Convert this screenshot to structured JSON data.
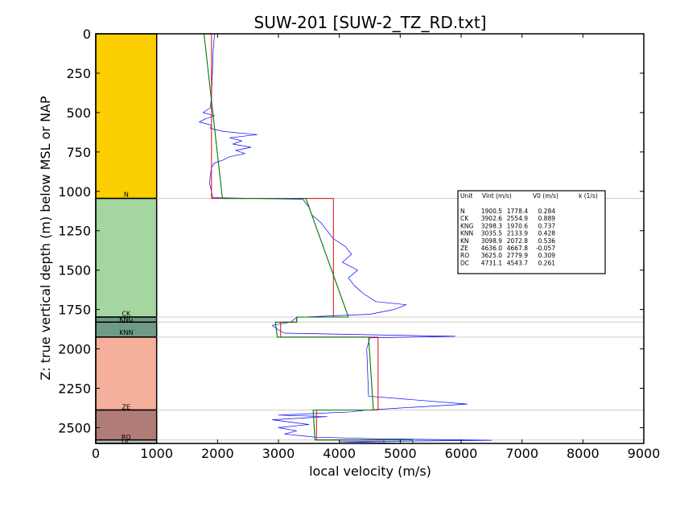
{
  "chart_data": {
    "type": "line",
    "title": "SUW-201 [SUW-2_TZ_RD.txt]",
    "xlabel": "local velocity (m/s)",
    "ylabel": "Z: true vertical depth (m) below MSL or NAP",
    "xlim": [
      0,
      9000
    ],
    "ylim": [
      2600,
      0
    ],
    "y_inverted": true,
    "xticks": [
      "0",
      "1000",
      "2000",
      "3000",
      "4000",
      "5000",
      "6000",
      "7000",
      "8000",
      "9000"
    ],
    "yticks": [
      "0",
      "250",
      "500",
      "750",
      "1000",
      "1250",
      "1500",
      "1750",
      "2000",
      "2250",
      "2500"
    ],
    "xtick_values": [
      0,
      1000,
      2000,
      3000,
      4000,
      5000,
      6000,
      7000,
      8000,
      9000
    ],
    "ytick_values": [
      0,
      250,
      500,
      750,
      1000,
      1250,
      1500,
      1750,
      2000,
      2250,
      2500
    ],
    "grid": false,
    "units": [
      {
        "name": "N",
        "top": 0,
        "base": 1045,
        "color": "#fccf03",
        "label_depth": 1020
      },
      {
        "name": "CK",
        "top": 1045,
        "base": 1798,
        "color": "#a6d6a0",
        "label_depth": 1775
      },
      {
        "name": "KNG",
        "top": 1798,
        "base": 1830,
        "color": "#6f9a85",
        "label_depth": 1812
      },
      {
        "name": "KNN",
        "top": 1830,
        "base": 1925,
        "color": "#6f9a85",
        "label_depth": 1895
      },
      {
        "name": "ZE",
        "top": 1925,
        "base": 2388,
        "color": "#f4b09a",
        "label_depth": 2367
      },
      {
        "name": "RO",
        "top": 2388,
        "base": 2578,
        "color": "#b07c78",
        "label_depth": 2560
      },
      {
        "name": "DC",
        "top": 2578,
        "base": 2600,
        "color": "#bbbbbb",
        "label_depth": 2590
      }
    ],
    "series": [
      {
        "color": "#0000ff",
        "style": "thin",
        "points": [
          [
            1950,
            0
          ],
          [
            1930,
            100
          ],
          [
            1920,
            200
          ],
          [
            1910,
            300
          ],
          [
            1900,
            400
          ],
          [
            1880,
            470
          ],
          [
            1760,
            500
          ],
          [
            1950,
            520
          ],
          [
            1800,
            540
          ],
          [
            1700,
            560
          ],
          [
            1900,
            580
          ],
          [
            1880,
            600
          ],
          [
            2100,
            620
          ],
          [
            2650,
            640
          ],
          [
            2200,
            660
          ],
          [
            2400,
            680
          ],
          [
            2250,
            700
          ],
          [
            2550,
            720
          ],
          [
            2300,
            740
          ],
          [
            2450,
            760
          ],
          [
            2200,
            780
          ],
          [
            2100,
            800
          ],
          [
            1950,
            820
          ],
          [
            1900,
            850
          ],
          [
            1880,
            900
          ],
          [
            1870,
            950
          ],
          [
            1900,
            1000
          ],
          [
            1920,
            1040
          ],
          [
            3400,
            1050
          ],
          [
            3500,
            1100
          ],
          [
            3550,
            1150
          ],
          [
            3700,
            1200
          ],
          [
            3800,
            1250
          ],
          [
            3900,
            1300
          ],
          [
            4100,
            1350
          ],
          [
            4200,
            1400
          ],
          [
            4050,
            1450
          ],
          [
            4300,
            1500
          ],
          [
            4150,
            1550
          ],
          [
            4250,
            1600
          ],
          [
            4400,
            1650
          ],
          [
            4600,
            1700
          ],
          [
            5100,
            1720
          ],
          [
            4900,
            1750
          ],
          [
            4500,
            1780
          ],
          [
            3300,
            1800
          ],
          [
            3200,
            1830
          ],
          [
            2900,
            1850
          ],
          [
            3000,
            1880
          ],
          [
            3100,
            1900
          ],
          [
            5900,
            1920
          ],
          [
            4500,
            1930
          ],
          [
            4450,
            2000
          ],
          [
            4460,
            2100
          ],
          [
            4470,
            2200
          ],
          [
            4480,
            2300
          ],
          [
            6100,
            2350
          ],
          [
            5000,
            2375
          ],
          [
            4400,
            2390
          ],
          [
            4200,
            2400
          ],
          [
            3000,
            2420
          ],
          [
            3800,
            2430
          ],
          [
            2900,
            2450
          ],
          [
            3500,
            2480
          ],
          [
            3000,
            2500
          ],
          [
            3300,
            2520
          ],
          [
            3100,
            2540
          ],
          [
            3600,
            2560
          ],
          [
            4500,
            2570
          ],
          [
            6500,
            2580
          ],
          [
            4000,
            2590
          ],
          [
            5200,
            2600
          ]
        ]
      },
      {
        "color": "#dd2222",
        "style": "step",
        "points": [
          [
            1900.5,
            0
          ],
          [
            1900.5,
            1045
          ],
          [
            3902.6,
            1045
          ],
          [
            3902.6,
            1798
          ],
          [
            3298.3,
            1798
          ],
          [
            3298.3,
            1830
          ],
          [
            3035.5,
            1830
          ],
          [
            3035.5,
            1925
          ],
          [
            4636.0,
            1925
          ],
          [
            4636.0,
            2388
          ],
          [
            3625.0,
            2388
          ],
          [
            3625.0,
            2578
          ],
          [
            4731.1,
            2578
          ],
          [
            4731.1,
            2600
          ]
        ]
      },
      {
        "color": "#007700",
        "style": "linear",
        "points": [
          [
            1778,
            0
          ],
          [
            2080,
            1045
          ],
          [
            3450,
            1045
          ],
          [
            4150,
            1798
          ],
          [
            3300,
            1798
          ],
          [
            3300,
            1830
          ],
          [
            2950,
            1830
          ],
          [
            2980,
            1925
          ],
          [
            4480,
            1925
          ],
          [
            4560,
            2388
          ],
          [
            3570,
            2388
          ],
          [
            3600,
            2578
          ],
          [
            5200,
            2578
          ],
          [
            5210,
            2600
          ]
        ]
      }
    ],
    "legend_table": {
      "placement": "right-middle",
      "header": [
        "Unit",
        "Vint (m/s)",
        "V0 (m/s)",
        "k (1/s)"
      ],
      "rows": [
        [
          "N",
          "1900.5",
          "1778.4",
          "0.284"
        ],
        [
          "CK",
          "3902.6",
          "2554.9",
          "0.889"
        ],
        [
          "KNG",
          "3298.3",
          "1970.6",
          "0.737"
        ],
        [
          "KNN",
          "3035.5",
          "2133.9",
          "0.428"
        ],
        [
          "KN",
          "3098.9",
          "2072.8",
          "0.536"
        ],
        [
          "ZE",
          "4636.0",
          "4667.8",
          "-0.057"
        ],
        [
          "RO",
          "3625.0",
          "2779.9",
          "0.309"
        ],
        [
          "DC",
          "4731.1",
          "4543.7",
          "0.261"
        ]
      ]
    }
  }
}
